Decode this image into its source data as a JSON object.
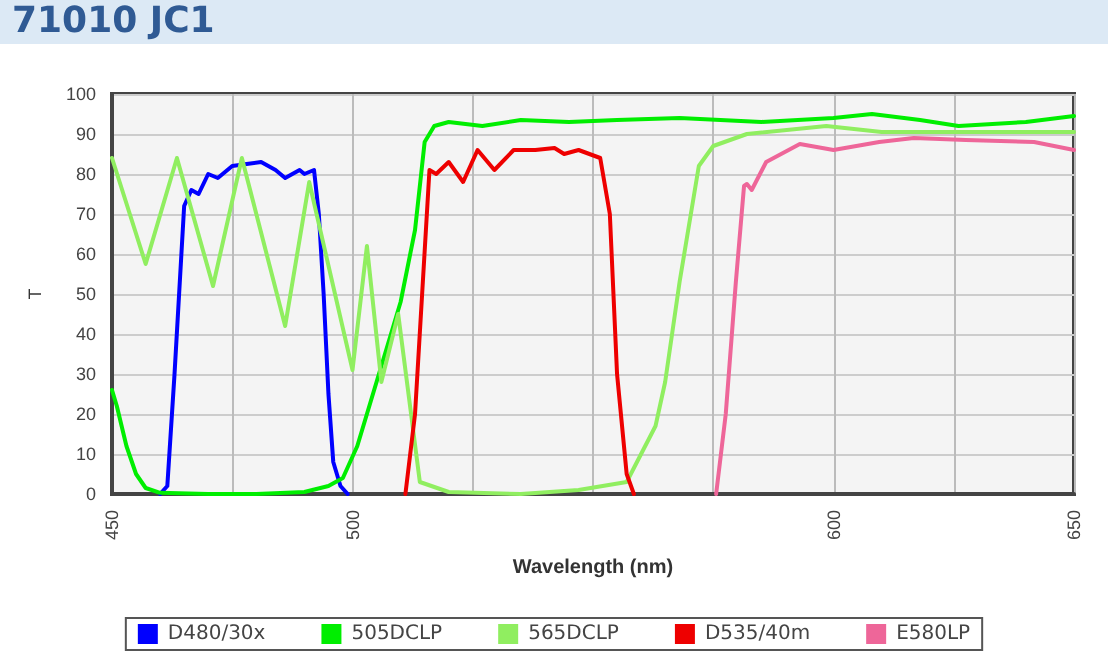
{
  "chart_data": {
    "type": "line",
    "title": "71010 JC1",
    "xlabel": "Wavelength (nm)",
    "ylabel": "T",
    "xlim": [
      450,
      650
    ],
    "xticks": [
      450,
      {
        "value": 475,
        "label": null
      },
      500,
      {
        "value": 525,
        "label": null
      },
      {
        "value": 550,
        "label": null
      },
      {
        "value": 575,
        "label": null
      },
      600,
      {
        "value": 625,
        "label": null
      },
      650
    ],
    "ylim": [
      0,
      100
    ],
    "yticks": [
      0,
      10,
      20,
      30,
      40,
      50,
      60,
      70,
      80,
      90,
      100
    ],
    "grid": true,
    "legend": "bottom",
    "marker": "none",
    "line_style": "solid",
    "series": [
      {
        "name": "D480/30x",
        "color": "#0000ff",
        "x": [
          460,
          461.5,
          463,
          465,
          466.5,
          468,
          470,
          472,
          475,
          478,
          481,
          484,
          486,
          489,
          490,
          492,
          493,
          494,
          495,
          496,
          497.5,
          499
        ],
        "values": [
          0,
          2,
          30,
          72,
          76,
          75,
          80,
          79,
          82,
          82.5,
          83,
          81,
          79,
          81,
          80,
          81,
          70,
          50,
          25,
          8,
          2,
          0
        ]
      },
      {
        "name": "505DCLP",
        "color": "#00ee00",
        "x": [
          450,
          451,
          453,
          455,
          457,
          460,
          470,
          480,
          490,
          495,
          498,
          501,
          505,
          510,
          513,
          515,
          517,
          520,
          527,
          535,
          545,
          555,
          568,
          585,
          600,
          608,
          618,
          626,
          640,
          650
        ],
        "values": [
          26,
          22,
          12,
          5,
          1.5,
          0.3,
          0,
          0,
          0.5,
          2,
          4,
          12,
          28,
          48,
          66,
          88,
          92,
          93,
          92,
          93.5,
          93,
          93.5,
          94,
          93,
          94,
          95,
          93.5,
          92,
          93,
          94.5
        ]
      },
      {
        "name": "565DCLP",
        "color": "#90ee60",
        "x": [
          450,
          457,
          463.5,
          471,
          477,
          486,
          491,
          500,
          503,
          506,
          509.5,
          514,
          520,
          535,
          547,
          557,
          563,
          565,
          568,
          572,
          575,
          582,
          598.5,
          610,
          630,
          650
        ],
        "values": [
          84,
          57.5,
          84,
          52,
          84,
          42,
          78,
          31,
          62,
          28,
          45,
          3,
          0.5,
          0,
          1,
          3,
          17,
          28,
          53,
          82,
          87,
          90,
          92,
          90.5,
          90.5,
          90.5
        ]
      },
      {
        "name": "D535/40m",
        "color": "#ee0000",
        "x": [
          511,
          513,
          516,
          517.4,
          520,
          523,
          526,
          529.5,
          533.5,
          538,
          542,
          544,
          547,
          551.5,
          553.5,
          555,
          557,
          558.5
        ],
        "values": [
          0,
          20,
          81,
          80,
          83,
          78,
          86,
          81,
          86,
          86,
          86.5,
          85,
          86,
          84,
          70,
          30,
          5,
          0
        ]
      },
      {
        "name": "E580LP",
        "color": "#ee6699",
        "x": [
          575.6,
          577.6,
          579.7,
          581.4,
          582,
          583,
          586,
          593,
          600,
          609.5,
          616.7,
          627.5,
          641.7,
          650
        ],
        "values": [
          0,
          20,
          53,
          77,
          77.5,
          76,
          83,
          87.5,
          86,
          88,
          89,
          88.5,
          88,
          86
        ]
      }
    ]
  }
}
